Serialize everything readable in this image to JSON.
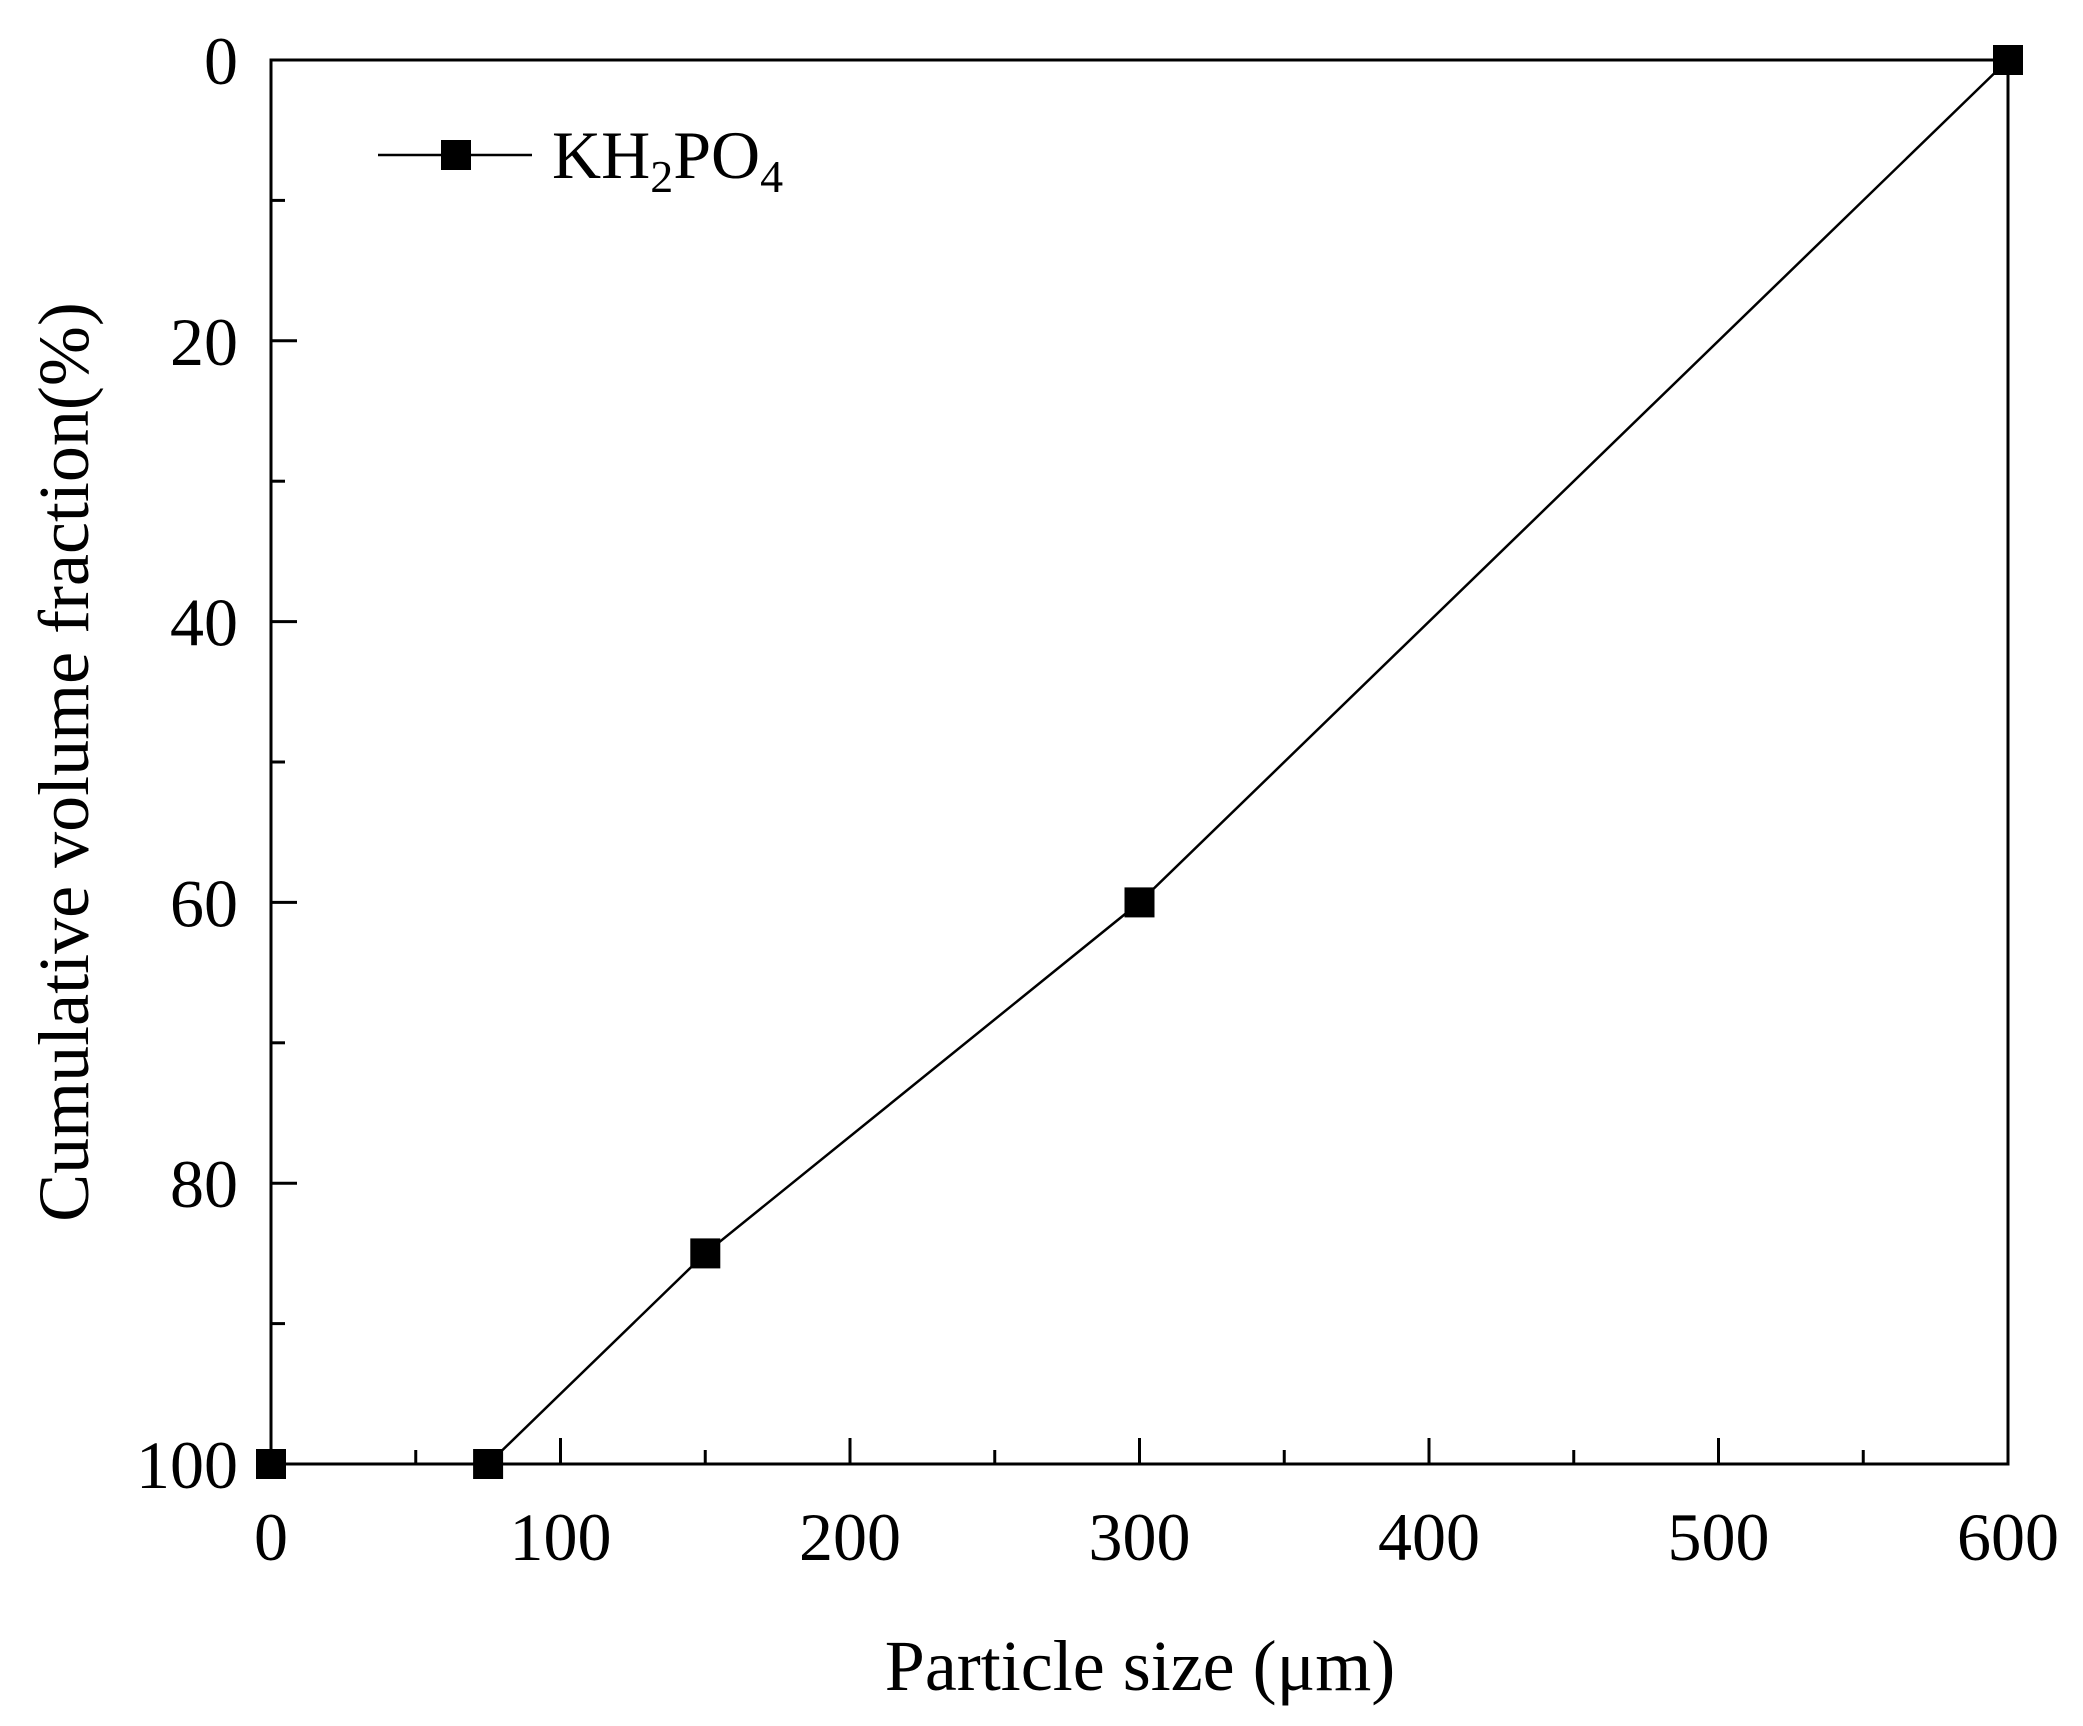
{
  "chart_data": {
    "type": "line",
    "title": "",
    "xlabel": "Particle size (μm)",
    "ylabel": "Cumulative volume fraction(%)",
    "xlim": [
      0,
      600
    ],
    "ylim": [
      0,
      100
    ],
    "y_inverted": true,
    "x_ticks": [
      "0",
      "100",
      "200",
      "300",
      "400",
      "500",
      "600"
    ],
    "y_ticks": [
      "0",
      "20",
      "40",
      "60",
      "80",
      "100"
    ],
    "grid": false,
    "legend_position": "top-left",
    "series": [
      {
        "name": "KH2PO4",
        "legend_parts": {
          "main": "KH",
          "sub1": "2",
          "mid": "PO",
          "sub2": "4"
        },
        "marker": "square",
        "color": "#000000",
        "x": [
          0,
          75,
          150,
          300,
          600
        ],
        "y": [
          100,
          100,
          85,
          60,
          0
        ]
      }
    ]
  }
}
